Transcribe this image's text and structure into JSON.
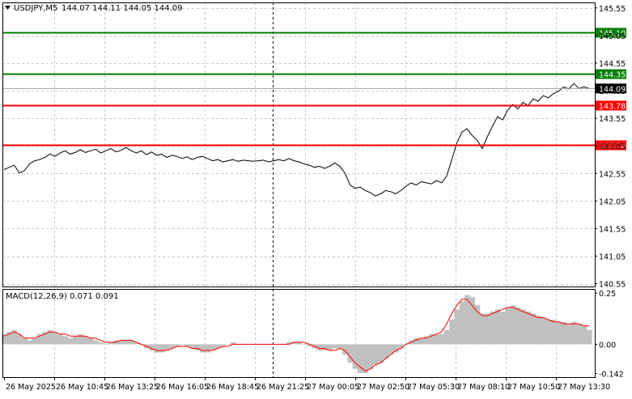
{
  "header": {
    "symbol": "USDJPY,M5",
    "ohlc": "144.07 144.11 144.05 144.09"
  },
  "colors": {
    "background": "#ffffff",
    "grid": "#c8c8c8",
    "price_line": "#000000",
    "support": "#ff0000",
    "resistance": "#008000",
    "macd_hist": "#c0c0c0",
    "macd_signal": "#ff0000",
    "current_price_bg": "#000000"
  },
  "chart_data": [
    {
      "type": "line",
      "title": "USDJPY,M5",
      "ylim": [
        140.5,
        145.65
      ],
      "yticks": [
        "145.55",
        "145.05",
        "144.55",
        "144.05",
        "143.55",
        "143.05",
        "142.55",
        "142.05",
        "141.55",
        "141.05",
        "140.55"
      ],
      "xtick_labels": [
        "26 May 2025",
        "26 May 10:45",
        "26 May 13:25",
        "26 May 16:05",
        "26 May 18:45",
        "26 May 21:25",
        "27 May 00:05",
        "27 May 02:50",
        "27 May 05:30",
        "27 May 08:10",
        "27 May 10:50",
        "27 May 13:30"
      ],
      "grid": true,
      "series": [
        {
          "values": [
            142.62,
            142.66,
            142.7,
            142.56,
            142.6,
            142.72,
            142.78,
            142.8,
            142.84,
            142.9,
            142.86,
            142.92,
            142.96,
            142.9,
            142.93,
            142.98,
            142.93,
            142.96,
            142.99,
            142.92,
            142.96,
            143.0,
            142.94,
            142.97,
            143.02,
            142.96,
            142.92,
            142.96,
            142.89,
            142.94,
            142.88,
            142.9,
            142.84,
            142.88,
            142.86,
            142.82,
            142.85,
            142.8,
            142.84,
            142.86,
            142.82,
            142.78,
            142.8,
            142.76,
            142.78,
            142.8,
            142.77,
            142.79,
            142.78,
            142.77,
            142.78,
            142.79,
            142.76,
            142.78,
            142.8,
            142.78,
            142.82,
            142.78,
            142.76,
            142.72,
            142.7,
            142.66,
            142.68,
            142.64,
            142.68,
            142.74,
            142.68,
            142.56,
            142.34,
            142.28,
            142.3,
            142.24,
            142.2,
            142.14,
            142.18,
            142.24,
            142.22,
            142.18,
            142.24,
            142.32,
            142.38,
            142.34,
            142.4,
            142.38,
            142.36,
            142.42,
            142.38,
            142.5,
            142.8,
            143.1,
            143.3,
            143.36,
            143.24,
            143.15,
            143.0,
            143.22,
            143.4,
            143.58,
            143.52,
            143.7,
            143.8,
            143.72,
            143.84,
            143.78,
            143.9,
            143.86,
            143.96,
            143.92,
            144.0,
            144.04,
            144.12,
            144.08,
            144.18,
            144.09,
            144.12,
            144.09
          ],
          "color": "#000000"
        }
      ],
      "levels": [
        {
          "value": 145.1,
          "label": "145.10",
          "color": "#008000",
          "kind": "resistance"
        },
        {
          "value": 144.35,
          "label": "144.35",
          "color": "#008000",
          "kind": "resistance"
        },
        {
          "value": 143.78,
          "label": "143.78",
          "color": "#ff0000",
          "kind": "support"
        },
        {
          "value": 143.06,
          "label": "143.06",
          "color": "#ff0000",
          "kind": "support"
        }
      ],
      "current_price": {
        "value": 144.09,
        "label": "144.09"
      }
    },
    {
      "type": "bar",
      "title": "MACD(12,26,9) 0.071 0.091",
      "ylim": [
        -0.16,
        0.27
      ],
      "yticks": [
        "0.25",
        "0.00",
        "-0.142"
      ],
      "histogram": [
        0.05,
        0.06,
        0.07,
        0.05,
        0.03,
        0.02,
        0.03,
        0.05,
        0.06,
        0.07,
        0.06,
        0.05,
        0.04,
        0.03,
        0.04,
        0.05,
        0.04,
        0.03,
        0.02,
        0.01,
        0.0,
        0.01,
        0.02,
        0.02,
        0.02,
        0.02,
        0.01,
        0.0,
        -0.02,
        -0.03,
        -0.04,
        -0.04,
        -0.03,
        -0.02,
        -0.01,
        0.0,
        -0.01,
        -0.02,
        -0.03,
        -0.04,
        -0.04,
        -0.03,
        -0.02,
        -0.01,
        0.0,
        0.01,
        0.0,
        0.0,
        0.0,
        0.0,
        0.0,
        0.0,
        0.0,
        0.0,
        0.0,
        0.0,
        0.01,
        0.01,
        0.01,
        0.0,
        -0.01,
        -0.02,
        -0.03,
        -0.03,
        -0.03,
        -0.02,
        -0.02,
        -0.05,
        -0.09,
        -0.12,
        -0.14,
        -0.14,
        -0.12,
        -0.1,
        -0.09,
        -0.07,
        -0.05,
        -0.04,
        -0.02,
        0.0,
        0.02,
        0.03,
        0.03,
        0.04,
        0.05,
        0.05,
        0.05,
        0.07,
        0.12,
        0.17,
        0.21,
        0.24,
        0.23,
        0.19,
        0.15,
        0.15,
        0.16,
        0.17,
        0.16,
        0.18,
        0.19,
        0.18,
        0.17,
        0.16,
        0.15,
        0.14,
        0.13,
        0.12,
        0.12,
        0.11,
        0.11,
        0.1,
        0.11,
        0.1,
        0.09,
        0.07
      ],
      "signal": [
        0.04,
        0.05,
        0.06,
        0.05,
        0.03,
        0.03,
        0.03,
        0.04,
        0.05,
        0.06,
        0.06,
        0.05,
        0.05,
        0.04,
        0.04,
        0.04,
        0.04,
        0.03,
        0.03,
        0.02,
        0.01,
        0.01,
        0.01,
        0.02,
        0.02,
        0.02,
        0.01,
        0.0,
        -0.01,
        -0.02,
        -0.03,
        -0.03,
        -0.03,
        -0.02,
        -0.01,
        -0.01,
        -0.01,
        -0.02,
        -0.02,
        -0.03,
        -0.03,
        -0.03,
        -0.02,
        -0.01,
        -0.01,
        0.0,
        0.0,
        0.0,
        0.0,
        0.0,
        0.0,
        0.0,
        0.0,
        0.0,
        0.0,
        0.0,
        0.0,
        0.01,
        0.01,
        0.01,
        0.0,
        -0.01,
        -0.02,
        -0.02,
        -0.03,
        -0.03,
        -0.02,
        -0.03,
        -0.06,
        -0.09,
        -0.11,
        -0.13,
        -0.12,
        -0.1,
        -0.09,
        -0.07,
        -0.05,
        -0.03,
        -0.02,
        0.0,
        0.01,
        0.02,
        0.03,
        0.03,
        0.04,
        0.05,
        0.06,
        0.1,
        0.15,
        0.19,
        0.22,
        0.22,
        0.19,
        0.16,
        0.14,
        0.14,
        0.15,
        0.16,
        0.17,
        0.18,
        0.18,
        0.17,
        0.16,
        0.15,
        0.14,
        0.13,
        0.13,
        0.12,
        0.11,
        0.11,
        0.1,
        0.1,
        0.1,
        0.1,
        0.09,
        0.09
      ]
    }
  ]
}
